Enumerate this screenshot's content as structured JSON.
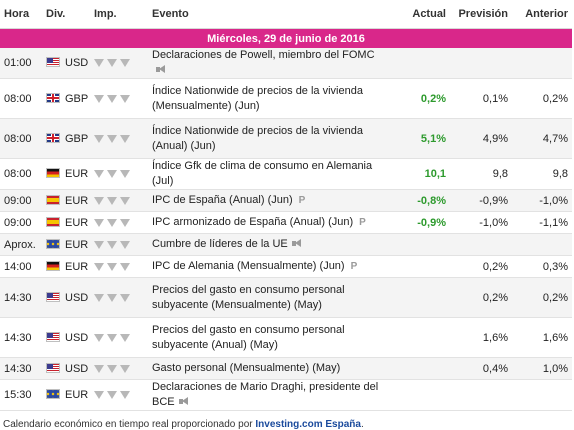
{
  "headers": {
    "hora": "Hora",
    "div": "Div.",
    "imp": "Imp.",
    "evento": "Evento",
    "actual": "Actual",
    "prevision": "Previsión",
    "anterior": "Anterior"
  },
  "date_label": "Miércoles, 29 de junio de 2016",
  "rows": [
    {
      "time": "01:00",
      "flag": "us",
      "cur": "USD",
      "imp": 3,
      "event": "Declaraciones de Powell, miembro del FOMC",
      "icon": "speaker",
      "actual": "",
      "actual_class": "neu",
      "forecast": "",
      "previous": ""
    },
    {
      "time": "08:00",
      "flag": "gb",
      "cur": "GBP",
      "imp": 3,
      "event": "Índice Nationwide de precios de la vivienda (Mensualmente) (Jun)",
      "icon": "",
      "actual": "0,2%",
      "actual_class": "pos",
      "forecast": "0,1%",
      "previous": "0,2%"
    },
    {
      "time": "08:00",
      "flag": "gb",
      "cur": "GBP",
      "imp": 3,
      "event": "Índice Nationwide de precios de la vivienda (Anual) (Jun)",
      "icon": "",
      "actual": "5,1%",
      "actual_class": "pos",
      "forecast": "4,9%",
      "previous": "4,7%"
    },
    {
      "time": "08:00",
      "flag": "de",
      "cur": "EUR",
      "imp": 3,
      "event": "Índice Gfk de clima de consumo en Alemania (Jul)",
      "icon": "",
      "actual": "10,1",
      "actual_class": "pos",
      "forecast": "9,8",
      "previous": "9,8"
    },
    {
      "time": "09:00",
      "flag": "es",
      "cur": "EUR",
      "imp": 3,
      "event": "IPC de España (Anual) (Jun)",
      "icon": "prelim",
      "actual": "-0,8%",
      "actual_class": "pos",
      "forecast": "-0,9%",
      "previous": "-1,0%"
    },
    {
      "time": "09:00",
      "flag": "es",
      "cur": "EUR",
      "imp": 3,
      "event": "IPC armonizado de España (Anual) (Jun)",
      "icon": "prelim",
      "actual": "-0,9%",
      "actual_class": "pos",
      "forecast": "-1,0%",
      "previous": "-1,1%"
    },
    {
      "time": "Aprox.",
      "flag": "eu",
      "cur": "EUR",
      "imp": 3,
      "event": "Cumbre de líderes de la UE",
      "icon": "speaker",
      "actual": "",
      "actual_class": "neu",
      "forecast": "",
      "previous": ""
    },
    {
      "time": "14:00",
      "flag": "de",
      "cur": "EUR",
      "imp": 3,
      "event": "IPC de Alemania (Mensualmente) (Jun)",
      "icon": "prelim",
      "actual": "",
      "actual_class": "neu",
      "forecast": "0,2%",
      "previous": "0,3%"
    },
    {
      "time": "14:30",
      "flag": "us",
      "cur": "USD",
      "imp": 3,
      "event": "Precios del gasto en consumo personal subyacente (Mensualmente) (May)",
      "icon": "",
      "actual": "",
      "actual_class": "neu",
      "forecast": "0,2%",
      "previous": "0,2%"
    },
    {
      "time": "14:30",
      "flag": "us",
      "cur": "USD",
      "imp": 3,
      "event": "Precios del gasto en consumo personal subyacente (Anual) (May)",
      "icon": "",
      "actual": "",
      "actual_class": "neu",
      "forecast": "1,6%",
      "previous": "1,6%"
    },
    {
      "time": "14:30",
      "flag": "us",
      "cur": "USD",
      "imp": 3,
      "event": "Gasto personal (Mensualmente) (May)",
      "icon": "",
      "actual": "",
      "actual_class": "neu",
      "forecast": "0,4%",
      "previous": "1,0%"
    },
    {
      "time": "15:30",
      "flag": "eu",
      "cur": "EUR",
      "imp": 3,
      "event": "Declaraciones de Mario Draghi, presidente del BCE",
      "icon": "speaker",
      "actual": "",
      "actual_class": "neu",
      "forecast": "",
      "previous": ""
    }
  ],
  "footer": {
    "text": "Calendario económico en tiempo real proporcionado por ",
    "link": "Investing.com España",
    "suffix": "."
  }
}
